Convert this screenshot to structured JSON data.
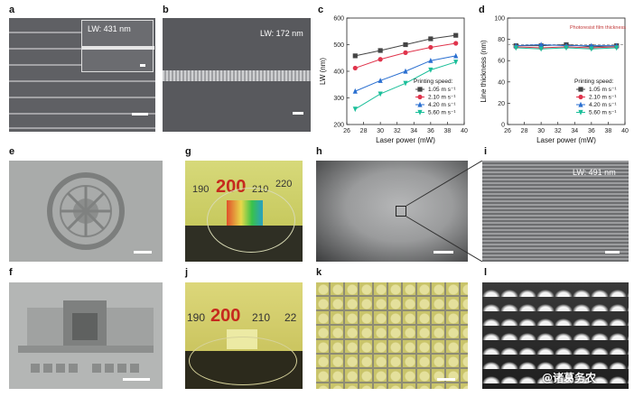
{
  "panels": {
    "a": {
      "label": "a",
      "inset_lw": "LW: 431 nm"
    },
    "b": {
      "label": "b",
      "lw": "LW: 172 nm"
    },
    "c": {
      "label": "c"
    },
    "d": {
      "label": "d"
    },
    "e": {
      "label": "e"
    },
    "f": {
      "label": "f"
    },
    "g": {
      "label": "g",
      "ruler_ticks": [
        "190",
        "200",
        "210",
        "220"
      ]
    },
    "h": {
      "label": "h"
    },
    "i": {
      "label": "i",
      "lw": "LW: 491 nm"
    },
    "j": {
      "label": "j",
      "ruler_ticks": [
        "190",
        "200",
        "210",
        "22"
      ]
    },
    "k": {
      "label": "k"
    },
    "l": {
      "label": "l"
    }
  },
  "watermark": "@诸葛务农",
  "chart_data": [
    {
      "type": "line",
      "panel": "c",
      "xlabel": "Laser power (mW)",
      "ylabel": "LW (nm)",
      "xlim": [
        26,
        40
      ],
      "ylim": [
        200,
        600
      ],
      "xticks": [
        "26",
        "28",
        "30",
        "32",
        "34",
        "36",
        "38",
        "40"
      ],
      "yticks": [
        "200",
        "300",
        "400",
        "500",
        "600"
      ],
      "legend_title": "Printing speed:",
      "legend_position": "bottom-right",
      "grid": false,
      "x": [
        27,
        30,
        33,
        36,
        39
      ],
      "series": [
        {
          "name": "1.05 m s⁻¹",
          "color": "#444444",
          "marker": "square",
          "values": [
            458,
            478,
            500,
            522,
            535
          ]
        },
        {
          "name": "2.10 m s⁻¹",
          "color": "#e0344c",
          "marker": "circle",
          "values": [
            412,
            445,
            470,
            490,
            505
          ]
        },
        {
          "name": "4.20 m s⁻¹",
          "color": "#2a6fd0",
          "marker": "triangle",
          "values": [
            325,
            365,
            400,
            440,
            458
          ]
        },
        {
          "name": "5.60 m s⁻¹",
          "color": "#1bbf9a",
          "marker": "triangle-down",
          "values": [
            258,
            315,
            355,
            405,
            435
          ]
        }
      ]
    },
    {
      "type": "line",
      "panel": "d",
      "xlabel": "Laser power (mW)",
      "ylabel": "Line thickness (nm)",
      "xlim": [
        26,
        40
      ],
      "ylim": [
        0,
        100
      ],
      "xticks": [
        "26",
        "28",
        "30",
        "32",
        "34",
        "36",
        "38",
        "40"
      ],
      "yticks": [
        "0",
        "20",
        "40",
        "60",
        "80",
        "100"
      ],
      "legend_title": "Printing speed:",
      "legend_position": "bottom-right",
      "annotation": "Photoresist film thickness",
      "reference_line": 75,
      "grid": false,
      "x": [
        27,
        30,
        33,
        36,
        39
      ],
      "series": [
        {
          "name": "1.05 m s⁻¹",
          "color": "#444444",
          "marker": "square",
          "values": [
            74,
            74,
            75,
            73,
            74
          ]
        },
        {
          "name": "2.10 m s⁻¹",
          "color": "#e0344c",
          "marker": "circle",
          "values": [
            73,
            72,
            73,
            72,
            73
          ]
        },
        {
          "name": "4.20 m s⁻¹",
          "color": "#2a6fd0",
          "marker": "triangle",
          "values": [
            74,
            75,
            74,
            74,
            74
          ]
        },
        {
          "name": "5.60 m s⁻¹",
          "color": "#1bbf9a",
          "marker": "triangle-down",
          "values": [
            72,
            71,
            72,
            71,
            72
          ]
        }
      ]
    }
  ]
}
